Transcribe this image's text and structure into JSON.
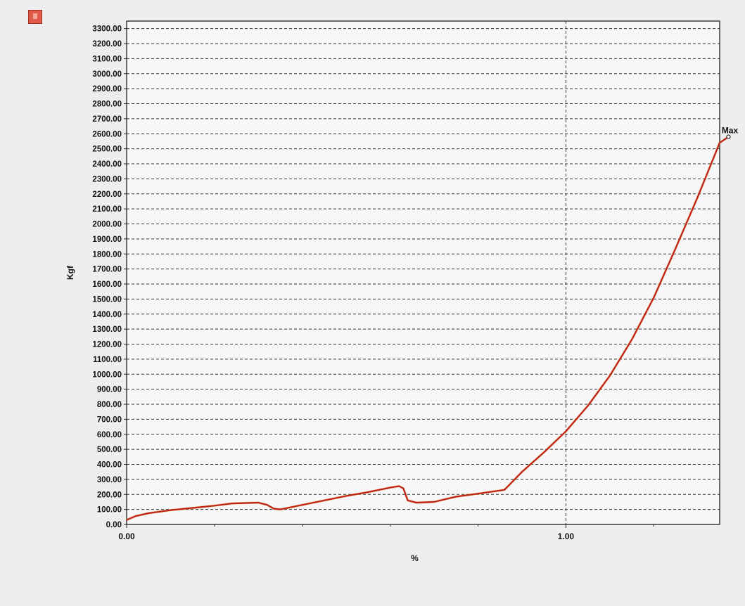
{
  "app_icon": "app-window-icon",
  "chart_data": {
    "type": "line",
    "title": "",
    "xlabel": "%",
    "ylabel": "Kgf",
    "xlim": [
      0.0,
      1.35
    ],
    "ylim": [
      0.0,
      3350.0
    ],
    "x_ticks": [
      0.0,
      1.0
    ],
    "x_tick_labels": [
      "0.00",
      "1.00"
    ],
    "y_ticks": [
      0,
      100,
      200,
      300,
      400,
      500,
      600,
      700,
      800,
      900,
      1000,
      1100,
      1200,
      1300,
      1400,
      1500,
      1600,
      1700,
      1800,
      1900,
      2000,
      2100,
      2200,
      2300,
      2400,
      2500,
      2600,
      2700,
      2800,
      2900,
      3000,
      3100,
      3200,
      3300
    ],
    "y_tick_labels": [
      "0.00",
      "100.00",
      "200.00",
      "300.00",
      "400.00",
      "500.00",
      "600.00",
      "700.00",
      "800.00",
      "900.00",
      "1000.00",
      "1100.00",
      "1200.00",
      "1300.00",
      "1400.00",
      "1500.00",
      "1600.00",
      "1700.00",
      "1800.00",
      "1900.00",
      "2000.00",
      "2100.00",
      "2200.00",
      "2300.00",
      "2400.00",
      "2500.00",
      "2600.00",
      "2700.00",
      "2800.00",
      "2900.00",
      "3000.00",
      "3100.00",
      "3200.00",
      "3300.00"
    ],
    "grid": "dashed",
    "series": [
      {
        "color": "#c0201c",
        "x": [
          0.0,
          0.02,
          0.05,
          0.1,
          0.15,
          0.2,
          0.24,
          0.3,
          0.32,
          0.335,
          0.35,
          0.4,
          0.45,
          0.5,
          0.55,
          0.6,
          0.62,
          0.63,
          0.64,
          0.66,
          0.7,
          0.75,
          0.8,
          0.86,
          0.87,
          0.9,
          0.95,
          1.0,
          1.05,
          1.1,
          1.15,
          1.2,
          1.25,
          1.3,
          1.35,
          1.37
        ],
        "y": [
          30,
          55,
          75,
          95,
          110,
          125,
          140,
          145,
          130,
          105,
          100,
          130,
          160,
          190,
          215,
          245,
          255,
          240,
          160,
          145,
          150,
          185,
          205,
          230,
          260,
          350,
          480,
          620,
          790,
          990,
          1230,
          1510,
          1840,
          2180,
          2540,
          2580
        ]
      }
    ],
    "annotations": [
      {
        "text": "Max",
        "x": 1.37,
        "y": 2580
      }
    ]
  }
}
